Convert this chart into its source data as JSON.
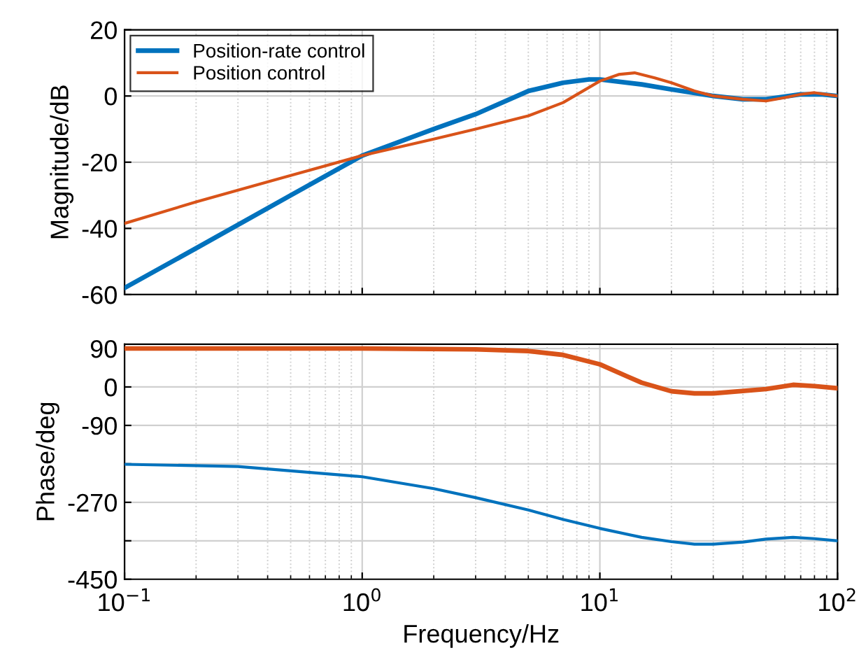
{
  "chart_data": [
    {
      "type": "line",
      "ylabel": "Magnitude/dB",
      "log": "x",
      "xlim": [
        0.1,
        100
      ],
      "xticks": [
        {
          "value": 0.1,
          "label": null
        },
        {
          "value": 1,
          "label": null
        },
        {
          "value": 10,
          "label": null
        },
        {
          "value": 100,
          "label": null
        }
      ],
      "ylim": [
        -60,
        20
      ],
      "yticks": [
        -60,
        -40,
        -20,
        0,
        20
      ],
      "tick_labels": "y",
      "grid": true,
      "legend": "top left",
      "series": [
        {
          "name": "Position-rate control",
          "color": "#0072bd",
          "x": [
            0.1,
            0.2,
            0.5,
            1,
            2,
            3,
            5,
            7,
            9,
            10,
            15,
            20,
            30,
            40,
            50,
            70,
            85,
            100
          ],
          "values": [
            -58,
            -46,
            -30,
            -18,
            -10,
            -5.5,
            1.5,
            4,
            5,
            5,
            3.5,
            2,
            0,
            -1,
            -1,
            0.5,
            0.5,
            0
          ]
        },
        {
          "name": "Position control",
          "color": "#d95319",
          "x": [
            0.1,
            0.2,
            0.5,
            1,
            2,
            3,
            5,
            7,
            10,
            12,
            14,
            17,
            20,
            25,
            30,
            40,
            50,
            60,
            70,
            80,
            100
          ],
          "values": [
            -38.5,
            -32,
            -24,
            -18,
            -13,
            -10,
            -6,
            -2,
            4.5,
            6.5,
            7,
            5.5,
            4,
            1.5,
            0,
            -1,
            -1.5,
            -0.5,
            0.5,
            1,
            0
          ]
        }
      ]
    },
    {
      "type": "line",
      "xlabel": "Frequency/Hz",
      "ylabel": "Phase/deg",
      "log": "x",
      "xlim": [
        0.1,
        100
      ],
      "xticks": [
        {
          "value": 0.1,
          "label": "10$^{−1}$"
        },
        {
          "value": 1,
          "label": "10$^{0}$"
        },
        {
          "value": 10,
          "label": "10$^{1}$"
        },
        {
          "value": 100,
          "label": "10$^{2}$"
        }
      ],
      "ylim": [
        -450,
        100
      ],
      "yticks": [
        90,
        0,
        -90,
        {
          "value": -180,
          "label": null
        },
        -270,
        {
          "value": -360,
          "label": null
        },
        -450
      ],
      "grid": true,
      "series": [
        {
          "color": "#d95319",
          "x": [
            0.1,
            1,
            3,
            5,
            7,
            10,
            13,
            15,
            20,
            25,
            30,
            50,
            65,
            80,
            100
          ],
          "values": [
            90,
            90,
            88,
            84,
            75,
            53,
            25,
            10,
            -10,
            -15,
            -15,
            -5,
            5,
            2,
            -3
          ]
        },
        {
          "color": "#0072bd",
          "x": [
            0.1,
            0.3,
            1,
            2,
            3,
            5,
            7,
            10,
            15,
            20,
            25,
            30,
            40,
            50,
            65,
            80,
            100
          ],
          "values": [
            -181,
            -186,
            -210,
            -238,
            -259,
            -288,
            -310,
            -331,
            -352,
            -362,
            -368,
            -368,
            -363,
            -356,
            -352,
            -355,
            -360
          ]
        }
      ]
    }
  ]
}
